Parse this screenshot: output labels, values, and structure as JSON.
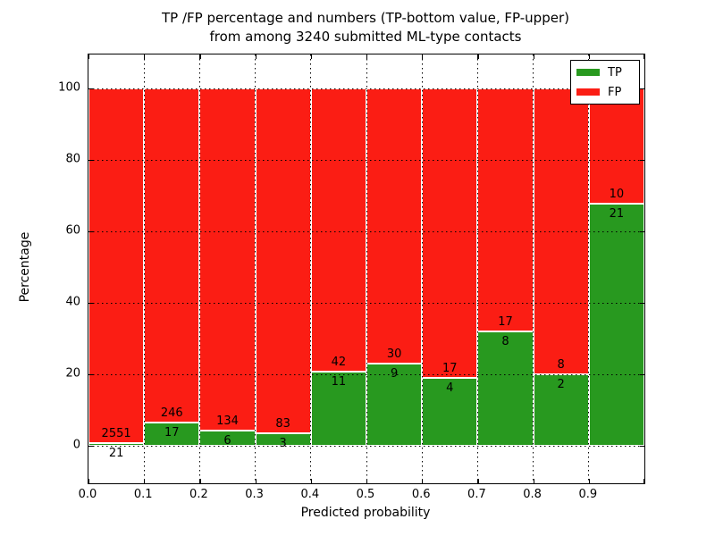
{
  "chart_data": {
    "type": "bar",
    "stacked": true,
    "normalized_to_percent": true,
    "title_line1": "TP /FP percentage and numbers (TP-bottom value, FP-upper)",
    "title_line2": "from among 3240 submitted ML-type contacts",
    "total_contacts": 3240,
    "xlabel": "Predicted probability",
    "ylabel": "Percentage",
    "x_tick_labels": [
      "0.0",
      "0.1",
      "0.2",
      "0.3",
      "0.4",
      "0.5",
      "0.6",
      "0.7",
      "0.8",
      "0.9"
    ],
    "y_ticks": [
      0,
      20,
      40,
      60,
      80,
      100
    ],
    "xlim": [
      0.0,
      1.0
    ],
    "ylim": [
      -10.5,
      109.5
    ],
    "bin_width": 0.1,
    "bin_starts": [
      0.0,
      0.1,
      0.2,
      0.3,
      0.4,
      0.5,
      0.6,
      0.7,
      0.8,
      0.9
    ],
    "series": [
      {
        "name": "TP",
        "counts": [
          21,
          17,
          6,
          3,
          11,
          9,
          4,
          8,
          2,
          21
        ]
      },
      {
        "name": "FP",
        "counts": [
          2551,
          246,
          134,
          83,
          42,
          30,
          17,
          17,
          8,
          10
        ]
      }
    ],
    "colors": {
      "tp": "#28991f",
      "fp": "#fb1d14",
      "grid": "#000000",
      "frame": "#000000"
    },
    "legend": {
      "position": "upper right",
      "entries": [
        "TP",
        "FP"
      ]
    },
    "grid": "dotted, drawn above bars",
    "bar_edge_color": "#ffffff"
  }
}
